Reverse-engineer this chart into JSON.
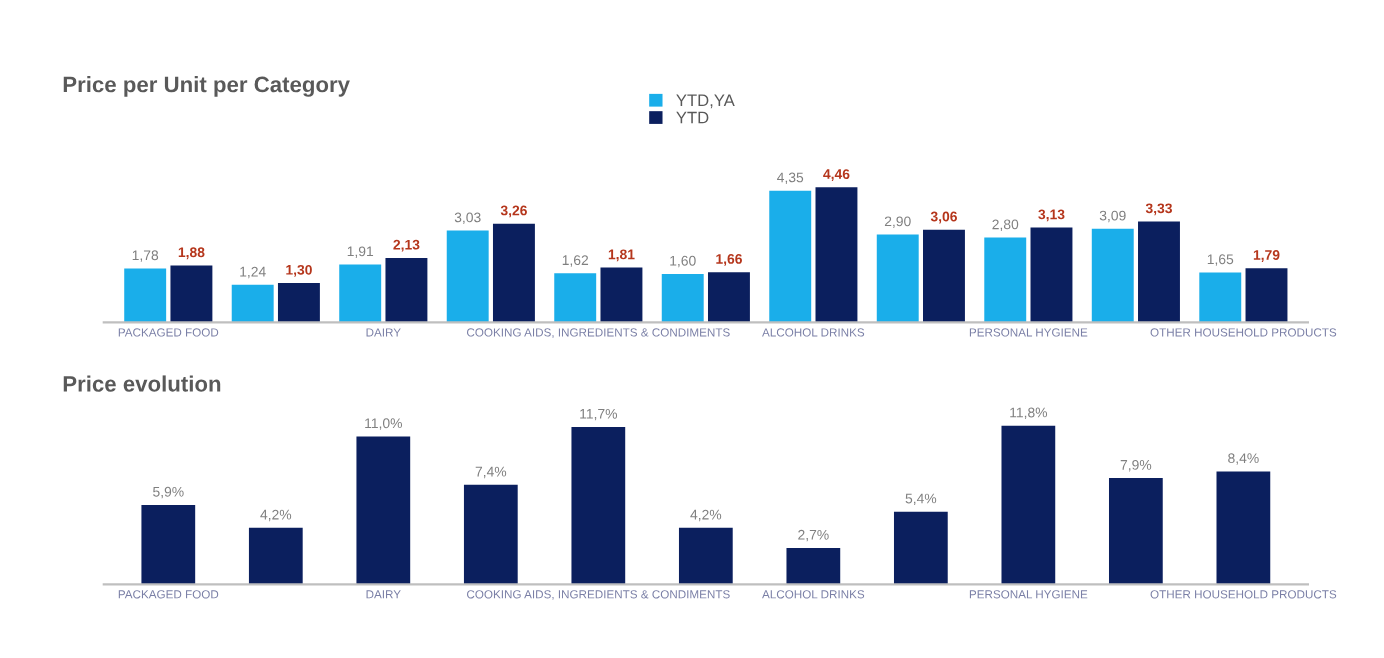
{
  "chart_data": [
    {
      "type": "bar",
      "title": "Price per Unit per Category",
      "legend": "top",
      "categories": [
        "PACKAGED FOOD",
        null,
        "DAIRY",
        null,
        "COOKING AIDS, INGREDIENTS & CONDIMENTS",
        null,
        "ALCOHOL DRINKS",
        null,
        "PERSONAL HYGIENE",
        null,
        "OTHER HOUSEHOLD PRODUCTS"
      ],
      "series": [
        {
          "name": "YTD,YA",
          "color": "#1aaeea",
          "values": [
            1.78,
            1.24,
            1.91,
            3.03,
            1.62,
            1.6,
            4.35,
            2.9,
            2.8,
            3.09,
            1.65
          ],
          "value_labels": [
            "1,78",
            "1,24",
            "1,91",
            "3,03",
            "1,62",
            "1,60",
            "4,35",
            "2,90",
            "2,80",
            "3,09",
            "1,65"
          ]
        },
        {
          "name": "YTD",
          "color": "#0b1f5e",
          "values": [
            1.88,
            1.3,
            2.13,
            3.26,
            1.81,
            1.66,
            4.46,
            3.06,
            3.13,
            3.33,
            1.79
          ],
          "value_labels": [
            "1,88",
            "1,30",
            "2,13",
            "3,26",
            "1,81",
            "1,66",
            "4,46",
            "3,06",
            "3,13",
            "3,33",
            "1,79"
          ]
        }
      ]
    },
    {
      "type": "bar",
      "title": "Price evolution",
      "categories": [
        "PACKAGED FOOD",
        null,
        "DAIRY",
        null,
        "COOKING AIDS, INGREDIENTS & CONDIMENTS",
        null,
        "ALCOHOL DRINKS",
        null,
        "PERSONAL HYGIENE",
        null,
        "OTHER HOUSEHOLD PRODUCTS"
      ],
      "color": "#0b1f5e",
      "values": [
        5.9,
        4.2,
        11.0,
        7.4,
        11.7,
        4.2,
        2.7,
        5.4,
        11.8,
        7.9,
        8.4
      ],
      "value_labels": [
        "5,9%",
        "4,2%",
        "11,0%",
        "7,4%",
        "11,7%",
        "4,2%",
        "2,7%",
        "5,4%",
        "11,8%",
        "7,9%",
        "8,4%"
      ]
    }
  ]
}
